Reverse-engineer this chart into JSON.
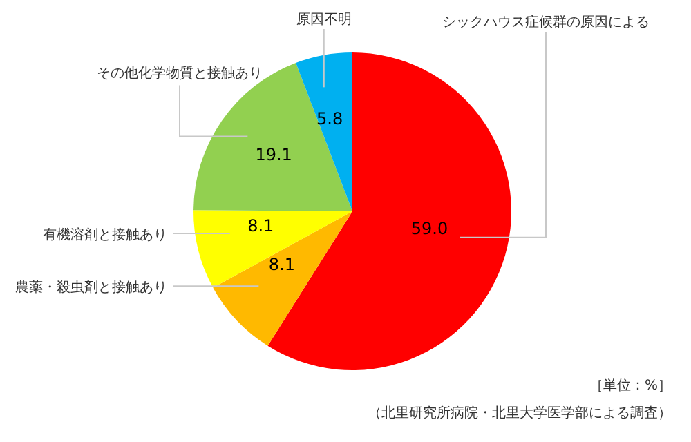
{
  "chart_data": {
    "type": "pie",
    "categories": [
      "シックハウス症候群の原因による",
      "農薬・殺虫剤と接触あり",
      "有機溶剤と接触あり",
      "その他化学物質と接触あり",
      "原因不明"
    ],
    "values": [
      59.0,
      8.1,
      8.1,
      19.1,
      5.8
    ],
    "colors": [
      "#ff0000",
      "#ffb900",
      "#ffff00",
      "#92d050",
      "#00b0f0"
    ],
    "value_labels": [
      "59.0",
      "8.1",
      "8.1",
      "19.1",
      "5.8"
    ],
    "annotations": [
      "［単位：%］",
      "（北里研究所病院・北里大学医学部による調査）"
    ]
  }
}
